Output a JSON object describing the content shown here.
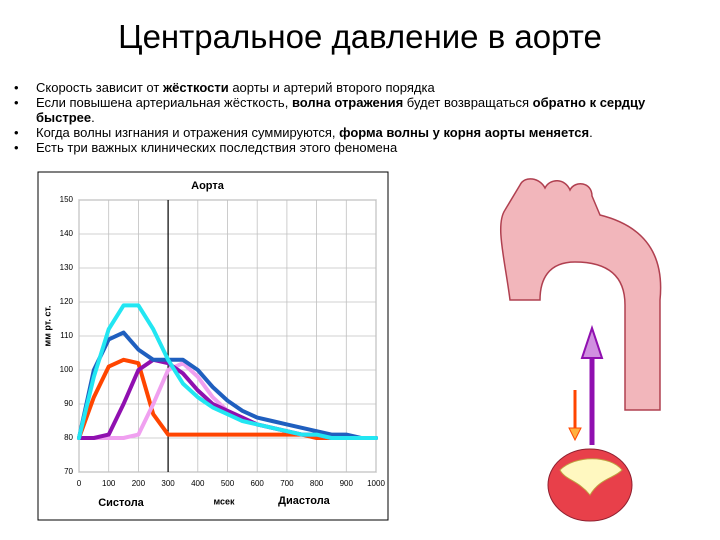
{
  "title": "Центральное давление в аорте",
  "bullets": [
    [
      {
        "text": "Скорость зависит от ",
        "bold": false
      },
      {
        "text": "жёсткости",
        "bold": true
      },
      {
        "text": " аорты и артерий второго порядка",
        "bold": false
      }
    ],
    [
      {
        "text": "Если повышена артериальная жёсткость, ",
        "bold": false
      },
      {
        "text": "волна отражения",
        "bold": true
      },
      {
        "text": " будет возвращаться ",
        "bold": false
      },
      {
        "text": "обратно к сердцу быстрее",
        "bold": true
      },
      {
        "text": ".",
        "bold": false
      }
    ],
    [
      {
        "text": "Когда волны изгнания и отражения суммируются, ",
        "bold": false
      },
      {
        "text": "форма волны у корня аорты меняется",
        "bold": true
      },
      {
        "text": ".",
        "bold": false
      }
    ],
    [
      {
        "text": "Есть три важных клинических последствия этого феномена",
        "bold": false
      }
    ]
  ],
  "chart_data": {
    "type": "line",
    "title": "Аорта",
    "y_label": "мм рт. ст.",
    "x_label": "мсек",
    "annotations": [
      "Систола",
      "Диастола"
    ],
    "divider_x": 300,
    "x": [
      0,
      50,
      100,
      150,
      200,
      250,
      300,
      350,
      400,
      450,
      500,
      550,
      600,
      650,
      700,
      750,
      800,
      850,
      900,
      950,
      1000
    ],
    "series": [
      {
        "color": "#ff4500",
        "values": [
          80,
          92,
          101,
          103,
          102,
          87,
          81,
          81,
          81,
          81,
          81,
          81,
          81,
          81,
          81,
          81,
          80,
          80,
          80,
          80,
          80
        ]
      },
      {
        "color": "#f0a0f0",
        "values": [
          80,
          80,
          80,
          80,
          81,
          90,
          100,
          102,
          98,
          92,
          88,
          86,
          84,
          83,
          82,
          81,
          81,
          80,
          80,
          80,
          80
        ]
      },
      {
        "color": "#9010b0",
        "values": [
          80,
          80,
          81,
          90,
          100,
          103,
          102,
          99,
          94,
          90,
          88,
          86,
          84,
          83,
          82,
          81,
          81,
          80,
          80,
          80,
          80
        ]
      },
      {
        "color": "#1f5fbf",
        "values": [
          80,
          100,
          109,
          111,
          106,
          103,
          103,
          103,
          100,
          95,
          91,
          88,
          86,
          85,
          84,
          83,
          82,
          81,
          81,
          80,
          80
        ]
      },
      {
        "color": "#22e6f2",
        "values": [
          80,
          98,
          112,
          119,
          119,
          112,
          103,
          96,
          92,
          89,
          87,
          85,
          84,
          83,
          82,
          81,
          81,
          80,
          80,
          80,
          80
        ]
      }
    ],
    "xlim": [
      0,
      1000
    ],
    "xticks": [
      0,
      100,
      200,
      300,
      400,
      500,
      600,
      700,
      800,
      900,
      1000
    ],
    "ylim": [
      70,
      150
    ],
    "yticks": [
      70,
      80,
      90,
      100,
      110,
      120,
      130,
      140,
      150
    ],
    "grid": true
  }
}
